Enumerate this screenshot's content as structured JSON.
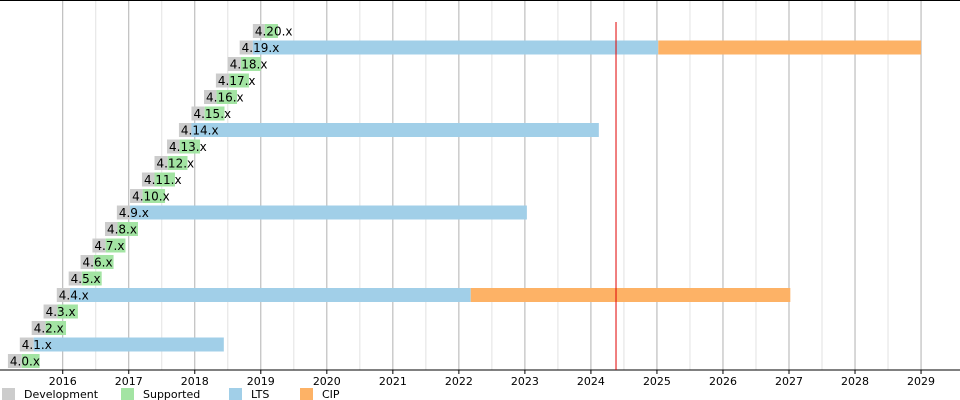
{
  "chart_data": {
    "type": "timeline",
    "categories": [
      "4.0.x",
      "4.1.x",
      "4.2.x",
      "4.3.x",
      "4.4.x",
      "4.5.x",
      "4.6.x",
      "4.7.x",
      "4.8.x",
      "4.9.x",
      "4.10.x",
      "4.11.x",
      "4.12.x",
      "4.13.x",
      "4.14.x",
      "4.15.x",
      "4.16.x",
      "4.17.x",
      "4.18.x",
      "4.19.x",
      "4.20.x"
    ],
    "series": [
      {
        "name": "Development",
        "color": "#cccccc",
        "values": [
          [
            2015.17,
            2015.38
          ],
          [
            2015.35,
            2015.56
          ],
          [
            2015.53,
            2015.74
          ],
          [
            2015.71,
            2015.92
          ],
          [
            2015.91,
            2016.11
          ],
          [
            2016.09,
            2016.29
          ],
          [
            2016.27,
            2016.47
          ],
          [
            2016.45,
            2016.65
          ],
          [
            2016.64,
            2016.83
          ],
          [
            2016.82,
            2017.02
          ],
          [
            2017.02,
            2017.21
          ],
          [
            2017.2,
            2017.39
          ],
          [
            2017.39,
            2017.59
          ],
          [
            2017.58,
            2017.77
          ],
          [
            2017.76,
            2017.95
          ],
          [
            2017.95,
            2018.15
          ],
          [
            2018.14,
            2018.33
          ],
          [
            2018.32,
            2018.52
          ],
          [
            2018.5,
            2018.7
          ],
          [
            2018.68,
            2018.88
          ],
          [
            2018.88,
            2019.06
          ]
        ]
      },
      {
        "name": "Supported",
        "color": "#a3e4a3",
        "values": [
          [
            2015.38,
            2015.65
          ],
          null,
          [
            2015.74,
            2016.05
          ],
          [
            2015.92,
            2016.23
          ],
          null,
          [
            2016.29,
            2016.59
          ],
          [
            2016.47,
            2016.77
          ],
          [
            2016.65,
            2016.95
          ],
          [
            2016.83,
            2017.14
          ],
          null,
          [
            2017.21,
            2017.55
          ],
          [
            2017.39,
            2017.7
          ],
          [
            2017.59,
            2017.89
          ],
          [
            2017.77,
            2018.08
          ],
          null,
          [
            2018.15,
            2018.45
          ],
          [
            2018.33,
            2018.64
          ],
          [
            2018.52,
            2018.82
          ],
          [
            2018.7,
            2019.0
          ],
          null,
          [
            2019.06,
            2019.26
          ]
        ]
      },
      {
        "name": "LTS",
        "color": "#a1cfe8",
        "values": [
          null,
          [
            2015.56,
            2018.44
          ],
          null,
          null,
          [
            2016.11,
            2022.18
          ],
          null,
          null,
          null,
          null,
          [
            2017.02,
            2023.03
          ],
          null,
          null,
          null,
          null,
          [
            2017.95,
            2024.12
          ],
          null,
          null,
          null,
          null,
          [
            2018.88,
            2025.02
          ],
          null
        ]
      },
      {
        "name": "CIP",
        "color": "#fdb266",
        "values": [
          null,
          null,
          null,
          null,
          [
            2022.18,
            2027.02
          ],
          null,
          null,
          null,
          null,
          null,
          null,
          null,
          null,
          null,
          null,
          null,
          null,
          null,
          null,
          [
            2025.02,
            2029.0
          ],
          null
        ]
      }
    ],
    "xlim": [
      2015.05,
      2029.59
    ],
    "xticks": [
      2016,
      2017,
      2018,
      2019,
      2020,
      2021,
      2022,
      2023,
      2024,
      2025,
      2026,
      2027,
      2028,
      2029
    ],
    "grid": true,
    "reference_line": {
      "value": 2024.38,
      "color": "#e00000"
    },
    "legend": "bottom"
  }
}
